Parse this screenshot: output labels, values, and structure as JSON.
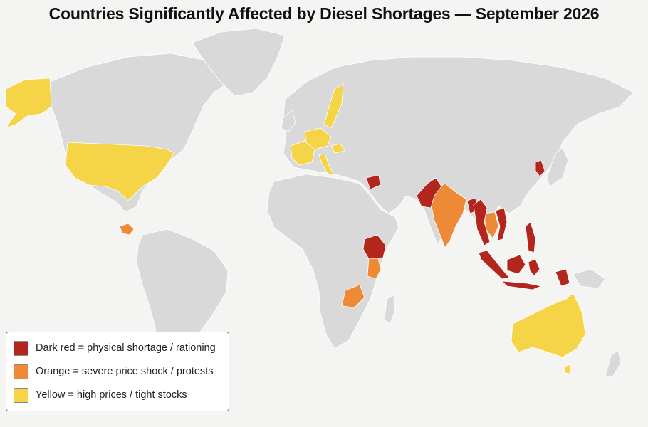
{
  "title": "Countries Significantly Affected by Diesel Shortages — September 2026",
  "colors": {
    "background": "#f4f4f2",
    "land": "#d9d9d9",
    "border": "#ffffff",
    "dark_red": "#b3261e",
    "orange": "#ee8a35",
    "yellow": "#f5d547"
  },
  "legend": [
    {
      "label": "Dark red = physical shortage / rationing",
      "color": "#b3261e"
    },
    {
      "label": "Orange = severe price shock / protests",
      "color": "#ee8a35"
    },
    {
      "label": "Yellow = high prices / tight stocks",
      "color": "#f5d547"
    }
  ],
  "highlighted_regions": [
    {
      "region": "alaska",
      "category": "yellow"
    },
    {
      "region": "united-states",
      "category": "yellow"
    },
    {
      "region": "scandinavia",
      "category": "yellow"
    },
    {
      "region": "western-europe",
      "category": "yellow"
    },
    {
      "region": "central-europe",
      "category": "yellow"
    },
    {
      "region": "italy",
      "category": "yellow"
    },
    {
      "region": "australia",
      "category": "yellow"
    },
    {
      "region": "central-america",
      "category": "orange"
    },
    {
      "region": "india",
      "category": "orange"
    },
    {
      "region": "kenya",
      "category": "orange"
    },
    {
      "region": "zambia",
      "category": "orange"
    },
    {
      "region": "thailand",
      "category": "orange"
    },
    {
      "region": "pakistan",
      "category": "dark_red"
    },
    {
      "region": "syria",
      "category": "dark_red"
    },
    {
      "region": "ethiopia",
      "category": "dark_red"
    },
    {
      "region": "bangladesh",
      "category": "dark_red"
    },
    {
      "region": "myanmar",
      "category": "dark_red"
    },
    {
      "region": "vietnam",
      "category": "dark_red"
    },
    {
      "region": "philippines",
      "category": "dark_red"
    },
    {
      "region": "indonesia",
      "category": "dark_red"
    },
    {
      "region": "korea",
      "category": "dark_red"
    }
  ]
}
